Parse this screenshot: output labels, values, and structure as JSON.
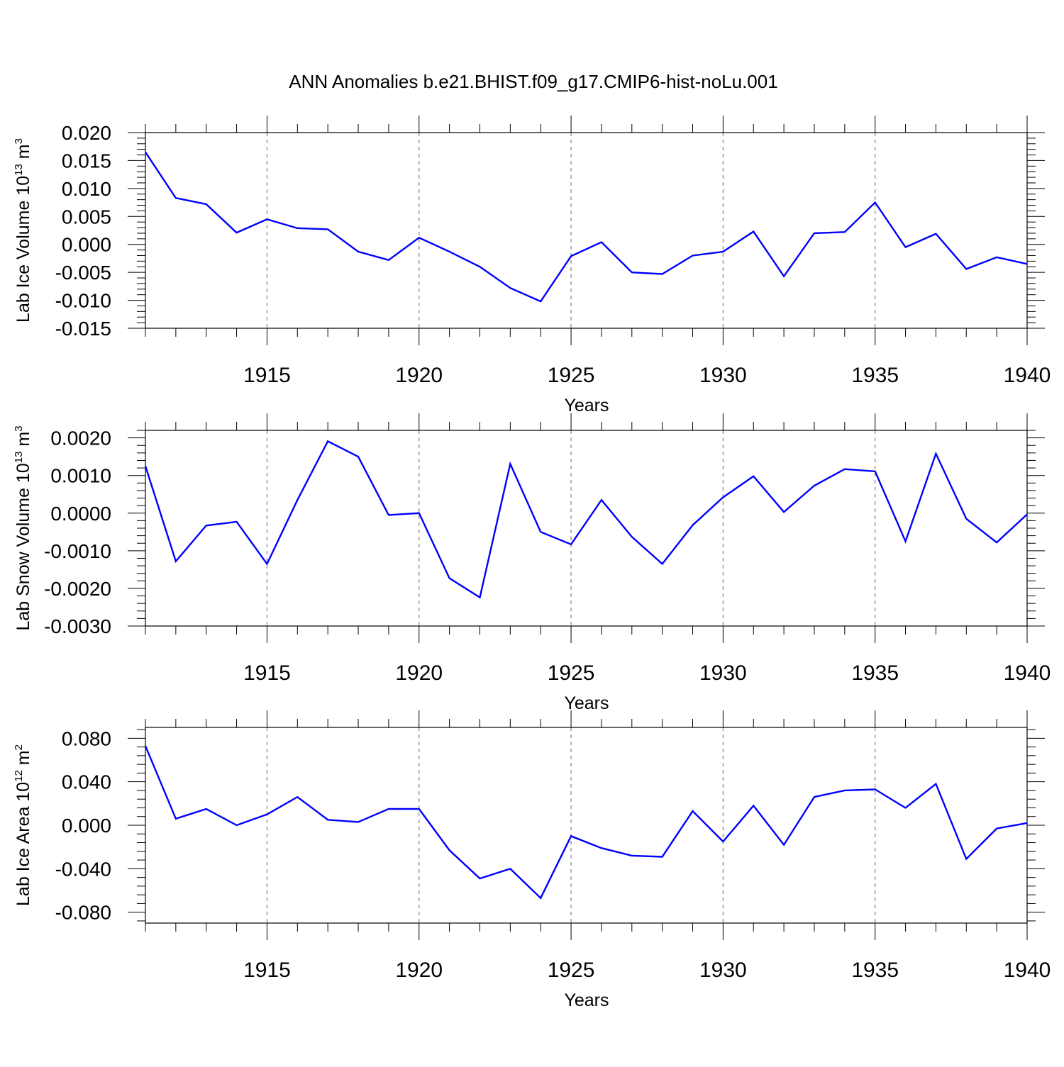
{
  "title": "ANN Anomalies b.e21.BHIST.f09_g17.CMIP6-hist-noLu.001",
  "colors": {
    "series": "#0000ff",
    "axis": "#000000",
    "grid": "#808080"
  },
  "chart_data": [
    {
      "type": "line",
      "ylabel_main": "Lab Ice Volume 10",
      "ylabel_sup": "13",
      "ylabel_unit": " m",
      "ylabel_unit_sup": "3",
      "xlabel": "Years",
      "xlim": [
        1911,
        1940
      ],
      "ylim": [
        -0.015,
        0.02
      ],
      "yticks": [
        0.02,
        0.015,
        0.01,
        0.005,
        0.0,
        -0.005,
        -0.01,
        -0.015
      ],
      "ytick_labels": [
        "0.020",
        "0.015",
        "0.010",
        "0.005",
        "0.000",
        "-0.005",
        "-0.010",
        "-0.015"
      ],
      "xticks": [
        1915,
        1920,
        1925,
        1930,
        1935,
        1940
      ],
      "xtick_labels": [
        "1915",
        "1920",
        "1925",
        "1930",
        "1935",
        "1940"
      ],
      "grid": "vertical dashed at major x ticks",
      "series": [
        {
          "name": "Lab Ice Volume",
          "x": [
            1911,
            1912,
            1913,
            1914,
            1915,
            1916,
            1917,
            1918,
            1919,
            1920,
            1921,
            1922,
            1923,
            1924,
            1925,
            1926,
            1927,
            1928,
            1929,
            1930,
            1931,
            1932,
            1933,
            1934,
            1935,
            1936,
            1937,
            1938,
            1939,
            1940
          ],
          "values": [
            0.0165,
            0.0083,
            0.0072,
            0.0021,
            0.0045,
            0.0029,
            0.0027,
            -0.0013,
            -0.0028,
            0.0012,
            -0.0013,
            -0.004,
            -0.0078,
            -0.0102,
            -0.0021,
            0.0004,
            -0.005,
            -0.0053,
            -0.002,
            -0.0013,
            0.0023,
            -0.0057,
            0.002,
            0.0022,
            0.0075,
            -0.0005,
            0.0019,
            -0.0044,
            -0.0023,
            -0.0035
          ]
        }
      ]
    },
    {
      "type": "line",
      "ylabel_main": "Lab Snow Volume 10",
      "ylabel_sup": "13",
      "ylabel_unit": " m",
      "ylabel_unit_sup": "3",
      "xlabel": "Years",
      "xlim": [
        1911,
        1940
      ],
      "ylim": [
        -0.003,
        0.0022
      ],
      "yticks": [
        0.002,
        0.001,
        0.0,
        -0.001,
        -0.002,
        -0.003
      ],
      "ytick_labels": [
        "0.0020",
        "0.0010",
        "0.0000",
        "-0.0010",
        "-0.0020",
        "-0.0030"
      ],
      "xticks": [
        1915,
        1920,
        1925,
        1930,
        1935,
        1940
      ],
      "xtick_labels": [
        "1915",
        "1920",
        "1925",
        "1930",
        "1935",
        "1940"
      ],
      "grid": "vertical dashed at major x ticks",
      "series": [
        {
          "name": "Lab Snow Volume",
          "x": [
            1911,
            1912,
            1913,
            1914,
            1915,
            1916,
            1917,
            1918,
            1919,
            1920,
            1921,
            1922,
            1923,
            1924,
            1925,
            1926,
            1927,
            1928,
            1929,
            1930,
            1931,
            1932,
            1933,
            1934,
            1935,
            1936,
            1937,
            1938,
            1939,
            1940
          ],
          "values": [
            0.00125,
            -0.00128,
            -0.00033,
            -0.00023,
            -0.00135,
            0.00035,
            0.00191,
            0.0015,
            -5e-05,
            0.0,
            -0.00173,
            -0.00224,
            0.00131,
            -0.0005,
            -0.00083,
            0.00035,
            -0.00063,
            -0.00135,
            -0.00032,
            0.00042,
            0.00098,
            3e-05,
            0.00073,
            0.00117,
            0.00111,
            -0.00075,
            0.00158,
            -0.00015,
            -0.00078,
            -3e-05
          ]
        }
      ]
    },
    {
      "type": "line",
      "ylabel_main": "Lab Ice Area 10",
      "ylabel_sup": "12",
      "ylabel_unit": " m",
      "ylabel_unit_sup": "2",
      "xlabel": "Years",
      "xlim": [
        1911,
        1940
      ],
      "ylim": [
        -0.09,
        0.09
      ],
      "yticks": [
        0.08,
        0.04,
        0.0,
        -0.04,
        -0.08
      ],
      "ytick_labels": [
        "0.080",
        "0.040",
        "0.000",
        "-0.040",
        "-0.080"
      ],
      "xticks": [
        1915,
        1920,
        1925,
        1930,
        1935,
        1940
      ],
      "xtick_labels": [
        "1915",
        "1920",
        "1925",
        "1930",
        "1935",
        "1940"
      ],
      "grid": "vertical dashed at major x ticks",
      "series": [
        {
          "name": "Lab Ice Area",
          "x": [
            1911,
            1912,
            1913,
            1914,
            1915,
            1916,
            1917,
            1918,
            1919,
            1920,
            1921,
            1922,
            1923,
            1924,
            1925,
            1926,
            1927,
            1928,
            1929,
            1930,
            1931,
            1932,
            1933,
            1934,
            1935,
            1936,
            1937,
            1938,
            1939,
            1940
          ],
          "values": [
            0.073,
            0.006,
            0.015,
            0.0,
            0.01,
            0.026,
            0.005,
            0.003,
            0.015,
            0.015,
            -0.023,
            -0.049,
            -0.04,
            -0.067,
            -0.01,
            -0.021,
            -0.028,
            -0.029,
            0.013,
            -0.015,
            0.018,
            -0.018,
            0.026,
            0.032,
            0.033,
            0.016,
            0.038,
            -0.031,
            -0.003,
            0.002
          ]
        }
      ]
    }
  ]
}
